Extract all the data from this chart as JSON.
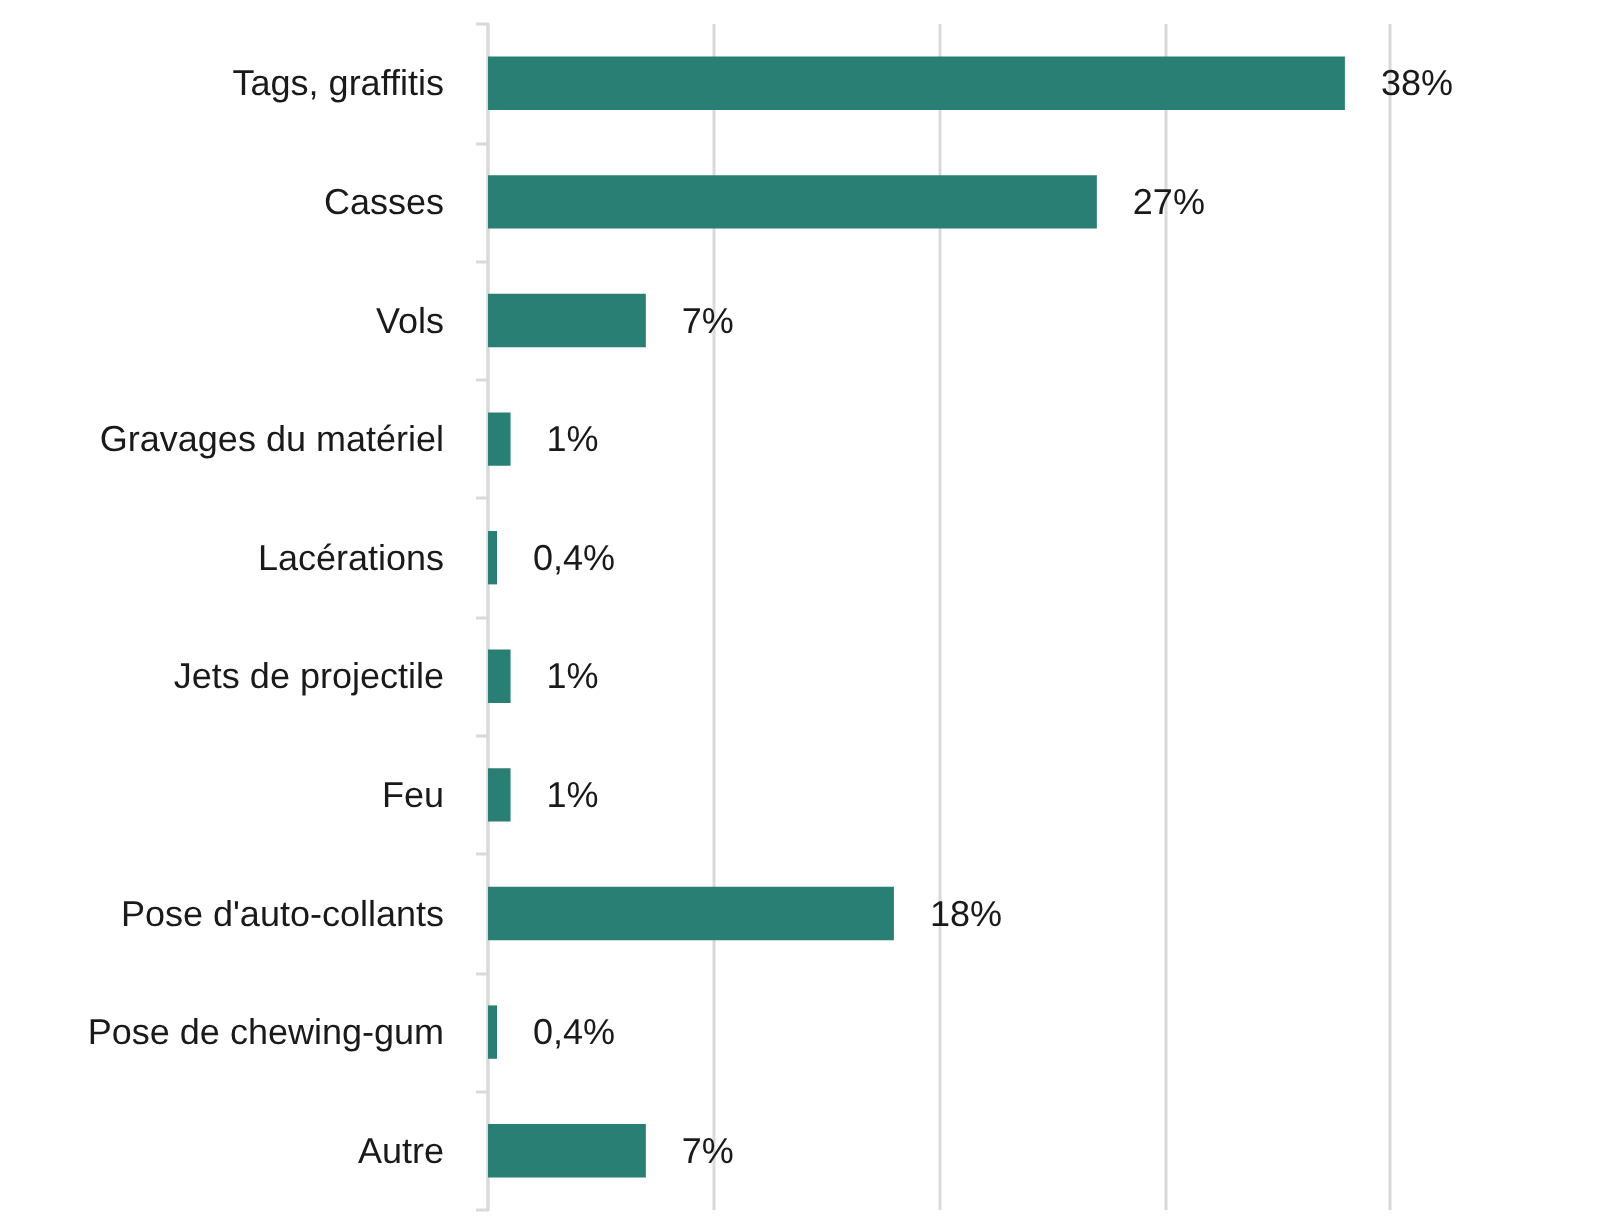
{
  "chart_data": {
    "type": "bar",
    "orientation": "horizontal",
    "categories": [
      "Tags, graffitis",
      "Casses",
      "Vols",
      "Gravages du matériel",
      "Lacérations",
      "Jets de projectile",
      "Feu",
      "Pose d'auto-collants",
      "Pose de chewing-gum",
      "Autre"
    ],
    "values": [
      38,
      27,
      7,
      1,
      0.4,
      1,
      1,
      18,
      0.4,
      7
    ],
    "value_labels": [
      "38%",
      "27%",
      "7%",
      "1%",
      "0,4%",
      "1%",
      "1%",
      "18%",
      "0,4%",
      "7%"
    ],
    "color": "#2a7f74",
    "xlim": [
      0,
      40
    ],
    "xticks": [
      {
        "value": 0,
        "label": null
      },
      {
        "value": 10,
        "label": null
      },
      {
        "value": 20,
        "label": null
      },
      {
        "value": 30,
        "label": null
      },
      {
        "value": 40,
        "label": null
      }
    ],
    "grid": "x",
    "tick_labels": "y"
  }
}
